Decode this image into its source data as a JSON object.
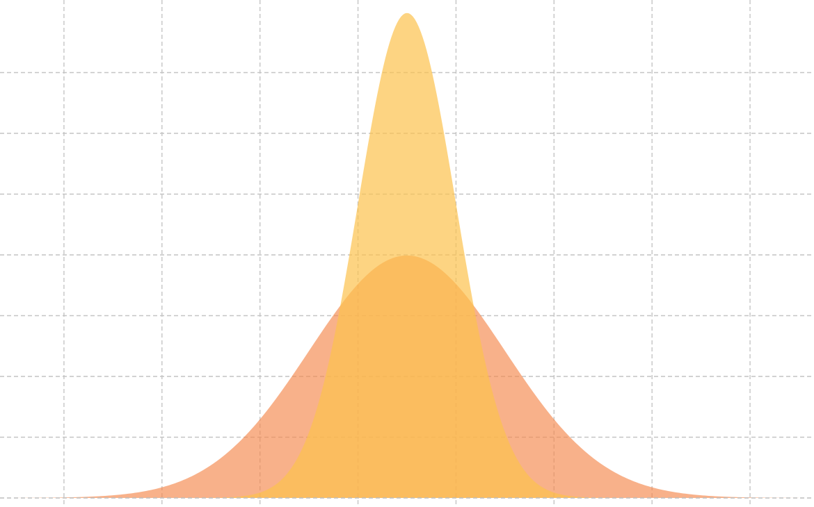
{
  "chart_data": {
    "type": "area",
    "title": "",
    "xlabel": "",
    "ylabel": "",
    "xlim": [
      -4,
      4
    ],
    "ylim": [
      0,
      0.8
    ],
    "grid": true,
    "legend": "none",
    "x_gridlines": [
      -3.5,
      -2.5,
      -1.5,
      -0.5,
      0.5,
      1.5,
      2.5,
      3.5
    ],
    "y_gridlines": [
      0.1,
      0.2,
      0.3,
      0.4,
      0.5,
      0.6,
      0.7
    ],
    "series": [
      {
        "distribution": "normal",
        "mean": 0,
        "std": 1,
        "peak_density": 0.399,
        "color": "#f4874b",
        "opacity": 0.65
      },
      {
        "distribution": "normal",
        "mean": 0,
        "std": 0.5,
        "peak_density": 0.798,
        "color": "#fcc24d",
        "opacity": 0.7
      }
    ]
  }
}
